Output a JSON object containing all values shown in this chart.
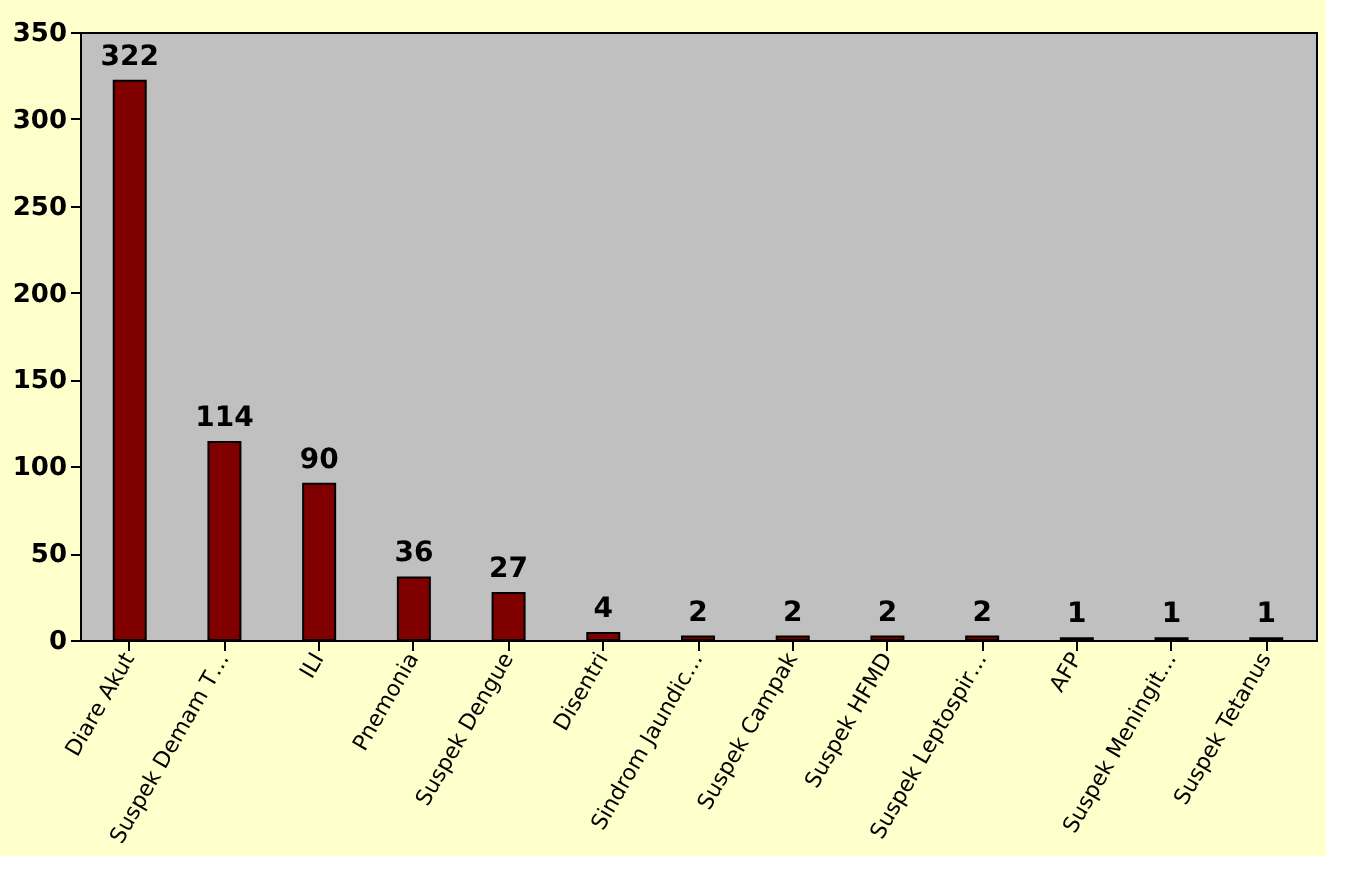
{
  "chart_data": {
    "type": "bar",
    "categories": [
      "Diare Akut",
      "Suspek Demam T…",
      "ILI",
      "Pnemonia",
      "Suspek Dengue",
      "Disentri",
      "Sindrom Jaundic…",
      "Suspek Campak",
      "Suspek HFMD",
      "Suspek Leptospir…",
      "AFP",
      "Suspek Meningit…",
      "Suspek Tetanus"
    ],
    "values": [
      322,
      114,
      90,
      36,
      27,
      4,
      2,
      2,
      2,
      2,
      1,
      1,
      1
    ],
    "color": "#800000",
    "ylim": [
      0,
      350
    ],
    "yticks": [
      0,
      50,
      100,
      150,
      200,
      250,
      300,
      350
    ],
    "grid": false,
    "data_labels": true
  }
}
